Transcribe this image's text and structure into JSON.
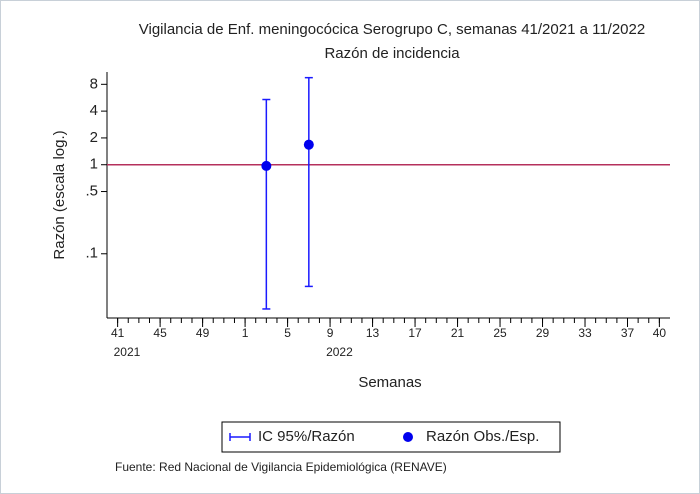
{
  "chart_data": {
    "type": "errorbar",
    "title": "Vigilancia de Enf. meningocócica Serogrupo C, semanas 41/2021 a 11/2022",
    "subtitle": "Razón de incidencia",
    "y_label": "Razón (escala log.)",
    "x_label": "Semanas",
    "source": "Fuente: Red Nacional de Vigilancia Epidemiológica (RENAVE)",
    "y_log": true,
    "ylim": [
      0.019,
      11
    ],
    "yticks": [
      8,
      4,
      2,
      1,
      {
        "value": 0.5,
        "label": ".5"
      },
      {
        "value": 0.1,
        "label": ".1"
      }
    ],
    "xlim": [
      -1,
      52
    ],
    "xticks": [
      {
        "value": 0,
        "label": "41"
      },
      {
        "value": 4,
        "label": "45"
      },
      {
        "value": 8,
        "label": "49"
      },
      {
        "value": 12,
        "label": "1"
      },
      {
        "value": 16,
        "label": "5"
      },
      {
        "value": 20,
        "label": "9"
      },
      {
        "value": 24,
        "label": "13"
      },
      {
        "value": 28,
        "label": "17"
      },
      {
        "value": 32,
        "label": "21"
      },
      {
        "value": 36,
        "label": "25"
      },
      {
        "value": 40,
        "label": "29"
      },
      {
        "value": 44,
        "label": "33"
      },
      {
        "value": 48,
        "label": "37"
      },
      {
        "value": 51,
        "label": "40"
      }
    ],
    "xminorticks": [
      0,
      1,
      2,
      3,
      4,
      5,
      6,
      7,
      8,
      9,
      10,
      11,
      12,
      13,
      14,
      15,
      16,
      17,
      18,
      19,
      20,
      21,
      22,
      23,
      24,
      25,
      26,
      27,
      28,
      29,
      30,
      31,
      32,
      33,
      34,
      35,
      36,
      37,
      38,
      39,
      40,
      41,
      42,
      43,
      44,
      45,
      46,
      47,
      48,
      49,
      50,
      51
    ],
    "year_labels": [
      {
        "x": 0,
        "label": "2021"
      },
      {
        "x": 20,
        "label": "2022"
      }
    ],
    "reference_line": {
      "y": 1,
      "color": "#b5305c"
    },
    "series": [
      {
        "name": "IC 95%/Razón",
        "kind": "ci",
        "color": "#1a1aff",
        "x": [
          14,
          18
        ],
        "low": [
          0.024,
          0.043
        ],
        "high": [
          5.4,
          9.5
        ]
      },
      {
        "name": "Razón Obs./Esp.",
        "kind": "point",
        "color": "#0000ee",
        "x": [
          14,
          18
        ],
        "values": [
          0.97,
          1.68
        ]
      }
    ]
  }
}
